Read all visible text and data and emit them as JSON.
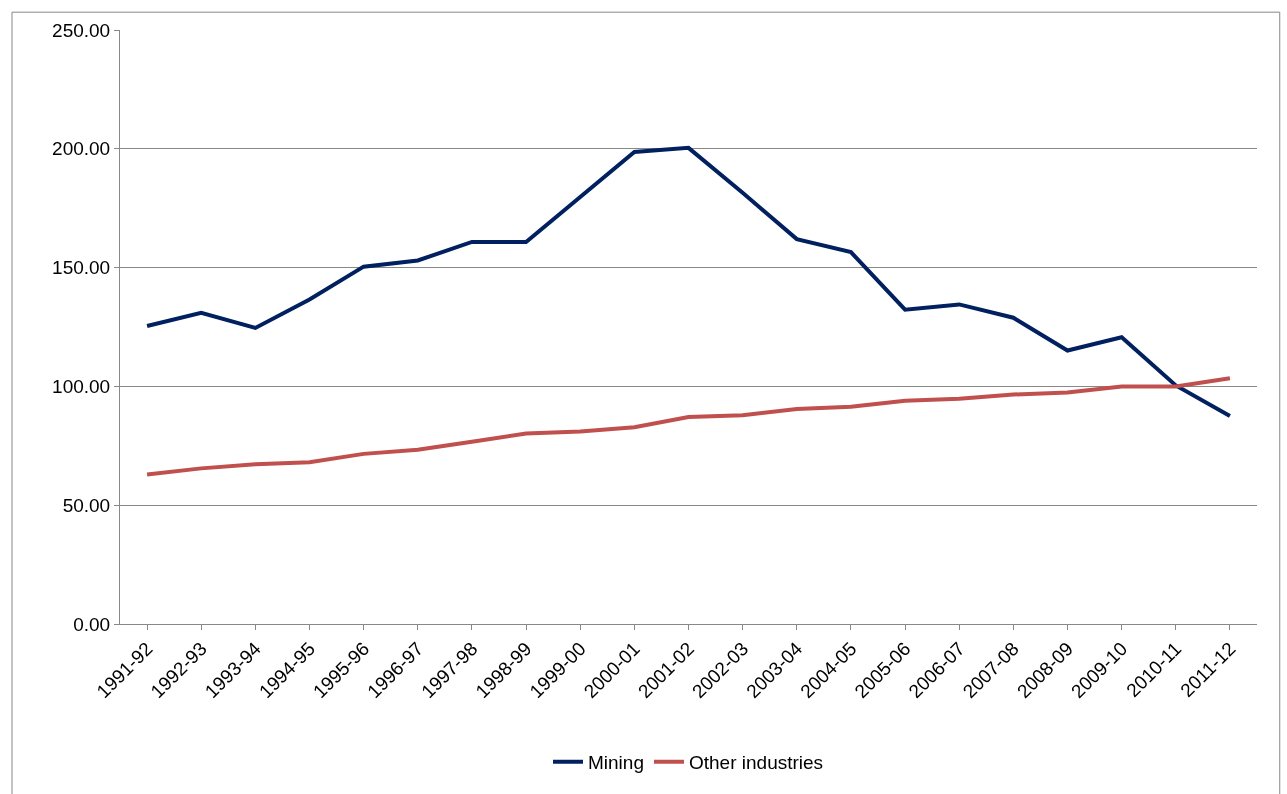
{
  "chart_data": {
    "type": "line",
    "categories": [
      "1991-92",
      "1992-93",
      "1993-94",
      "1994-95",
      "1995-96",
      "1996-97",
      "1997-98",
      "1998-99",
      "1999-00",
      "2000-01",
      "2001-02",
      "2002-03",
      "2003-04",
      "2004-05",
      "2005-06",
      "2006-07",
      "2007-08",
      "2008-09",
      "2009-10",
      "2010-11",
      "2011-12"
    ],
    "series": [
      {
        "name": "Mining",
        "color": "#002060",
        "values": [
          125.4,
          131,
          124.6,
          136.6,
          150.4,
          153,
          160.8,
          160.8,
          179.7,
          198.7,
          200.4,
          181.5,
          162,
          156.5,
          132.3,
          134.5,
          128.9,
          115.1,
          120.7,
          100.4,
          87.5
        ]
      },
      {
        "name": "Other industries",
        "color": "#c0504d",
        "values": [
          62.9,
          65.5,
          67.2,
          68.1,
          71.6,
          73.3,
          76.7,
          80.2,
          81,
          82.8,
          87.1,
          87.9,
          90.5,
          91.4,
          94,
          94.8,
          96.6,
          97.4,
          100,
          100,
          103.4
        ]
      }
    ],
    "ylim": [
      0,
      250
    ],
    "yticks": [
      {
        "value": 0,
        "label": "0.00"
      },
      {
        "value": 50,
        "label": "50.00"
      },
      {
        "value": 100,
        "label": "100.00"
      },
      {
        "value": 150,
        "label": "150.00"
      },
      {
        "value": 200,
        "label": "200.00"
      },
      {
        "value": 250,
        "label": "250.00"
      }
    ],
    "grid": "y",
    "legend": "bottom",
    "marker": "none",
    "line_style": "solid"
  }
}
